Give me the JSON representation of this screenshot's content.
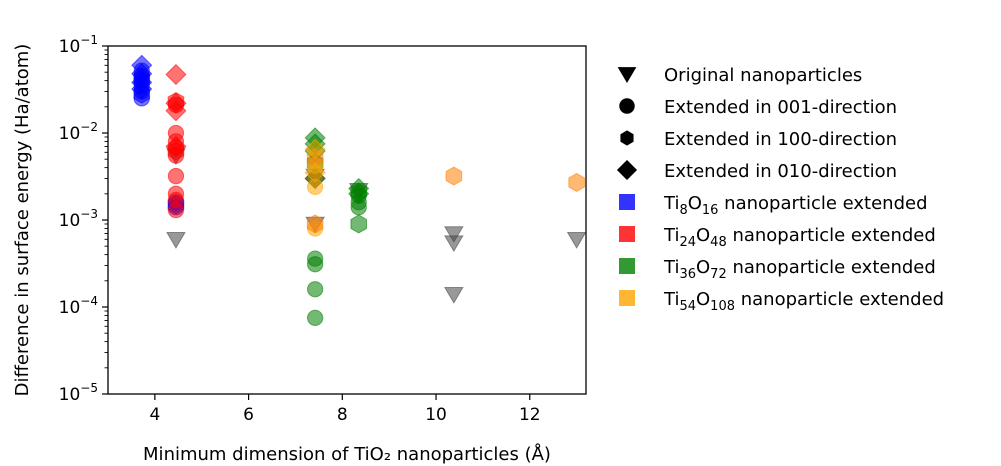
{
  "chart_data": {
    "type": "scatter",
    "xlabel": "Minimum dimension of TiO₂ nanoparticles (Å)",
    "ylabel": "Difference in surface energy (Ha/atom)",
    "xlim": [
      3,
      13.2
    ],
    "ylim": [
      1e-05,
      0.1
    ],
    "yscale": "log",
    "grid": false,
    "legend_position": "right-outside",
    "x_ticks": [
      4,
      6,
      8,
      10,
      12
    ],
    "x_tick_labels": [
      "4",
      "6",
      "8",
      "10",
      "12"
    ],
    "y_ticks": [
      1e-05,
      0.0001,
      0.001,
      0.01,
      0.1
    ],
    "y_tick_labels": [
      {
        "base": "10",
        "exp": "−5"
      },
      {
        "base": "10",
        "exp": "−4"
      },
      {
        "base": "10",
        "exp": "−3"
      },
      {
        "base": "10",
        "exp": "−2"
      },
      {
        "base": "10",
        "exp": "−1"
      }
    ],
    "marker_legend": [
      {
        "marker": "triangle-down",
        "label": "Original nanoparticles"
      },
      {
        "marker": "circle",
        "label": "Extended in 001-direction"
      },
      {
        "marker": "hexagon",
        "label": "Extended in 100-direction"
      },
      {
        "marker": "diamond",
        "label": "Extended in 010-direction"
      }
    ],
    "color_legend": [
      {
        "color": "#0000ff",
        "pre": "Ti",
        "sub1": "8",
        "mid": "O",
        "sub2": "16",
        "post": " nanoparticle extended"
      },
      {
        "color": "#ff0000",
        "pre": "Ti",
        "sub1": "24",
        "mid": "O",
        "sub2": "48",
        "post": " nanoparticle extended"
      },
      {
        "color": "#008000",
        "pre": "Ti",
        "sub1": "36",
        "mid": "O",
        "sub2": "72",
        "post": " nanoparticle extended"
      },
      {
        "color": "#ffa500",
        "pre": "Ti",
        "sub1": "54",
        "mid": "O",
        "sub2": "108",
        "post": " nanoparticle extended"
      }
    ],
    "series": [
      {
        "marker": "triangle-down",
        "color": "#444444",
        "points": [
          [
            4.45,
            0.0006
          ],
          [
            4.45,
            0.0055
          ],
          [
            7.42,
            0.0009
          ],
          [
            7.42,
            0.0032
          ],
          [
            8.35,
            0.0022
          ],
          [
            10.38,
            0.00055
          ],
          [
            10.38,
            0.0007
          ],
          [
            10.38,
            0.00014
          ],
          [
            13.0,
            0.0006
          ]
        ]
      },
      {
        "marker": "circle",
        "color": "#0000ff",
        "points": [
          [
            3.72,
            0.025
          ],
          [
            3.72,
            0.03
          ],
          [
            3.72,
            0.035
          ],
          [
            3.72,
            0.04
          ],
          [
            3.72,
            0.045
          ],
          [
            3.72,
            0.052
          ],
          [
            4.45,
            0.0014
          ],
          [
            4.45,
            0.0016
          ]
        ]
      },
      {
        "marker": "hexagon",
        "color": "#0000ff",
        "points": [
          [
            3.72,
            0.028
          ],
          [
            3.72,
            0.042
          ],
          [
            4.45,
            0.0015
          ]
        ]
      },
      {
        "marker": "diamond",
        "color": "#0000ff",
        "points": [
          [
            3.72,
            0.032
          ],
          [
            3.72,
            0.038
          ],
          [
            3.72,
            0.048
          ],
          [
            3.72,
            0.06
          ]
        ]
      },
      {
        "marker": "circle",
        "color": "#ff0000",
        "points": [
          [
            4.45,
            0.0013
          ],
          [
            4.45,
            0.0017
          ],
          [
            4.45,
            0.002
          ],
          [
            4.45,
            0.0032
          ],
          [
            4.45,
            0.0055
          ],
          [
            4.45,
            0.0068
          ],
          [
            4.45,
            0.008
          ],
          [
            4.45,
            0.01
          ],
          [
            4.45,
            0.021
          ]
        ]
      },
      {
        "marker": "hexagon",
        "color": "#ff0000",
        "points": [
          [
            4.45,
            0.0062
          ],
          [
            4.45,
            0.023
          ]
        ]
      },
      {
        "marker": "diamond",
        "color": "#ff0000",
        "points": [
          [
            4.45,
            0.007
          ],
          [
            4.45,
            0.018
          ],
          [
            4.45,
            0.022
          ],
          [
            4.45,
            0.047
          ],
          [
            7.42,
            0.003
          ]
        ]
      },
      {
        "marker": "circle",
        "color": "#008000",
        "points": [
          [
            7.42,
            7.5e-05
          ],
          [
            7.42,
            0.00016
          ],
          [
            7.42,
            0.00031
          ],
          [
            7.42,
            0.00036
          ],
          [
            8.35,
            0.0014
          ],
          [
            8.35,
            0.0016
          ],
          [
            8.35,
            0.0019
          ]
        ]
      },
      {
        "marker": "hexagon",
        "color": "#008000",
        "points": [
          [
            8.35,
            0.0009
          ],
          [
            8.35,
            0.0021
          ],
          [
            7.42,
            0.0045
          ]
        ]
      },
      {
        "marker": "diamond",
        "color": "#008000",
        "points": [
          [
            7.42,
            0.003
          ],
          [
            7.42,
            0.0062
          ],
          [
            7.42,
            0.0075
          ],
          [
            7.42,
            0.0088
          ],
          [
            8.35,
            0.002
          ],
          [
            8.35,
            0.0023
          ]
        ]
      },
      {
        "marker": "circle",
        "color": "#ffa500",
        "points": [
          [
            7.42,
            0.0008
          ],
          [
            7.42,
            0.0024
          ],
          [
            7.42,
            0.0042
          ]
        ]
      },
      {
        "marker": "hexagon",
        "color": "#ff7f00",
        "points": [
          [
            7.42,
            0.0009
          ],
          [
            7.42,
            0.0052
          ],
          [
            10.38,
            0.0032
          ],
          [
            13.0,
            0.0027
          ]
        ]
      },
      {
        "marker": "diamond",
        "color": "#ffa500",
        "points": [
          [
            7.42,
            0.0065
          ],
          [
            7.42,
            0.0035
          ]
        ]
      }
    ]
  }
}
